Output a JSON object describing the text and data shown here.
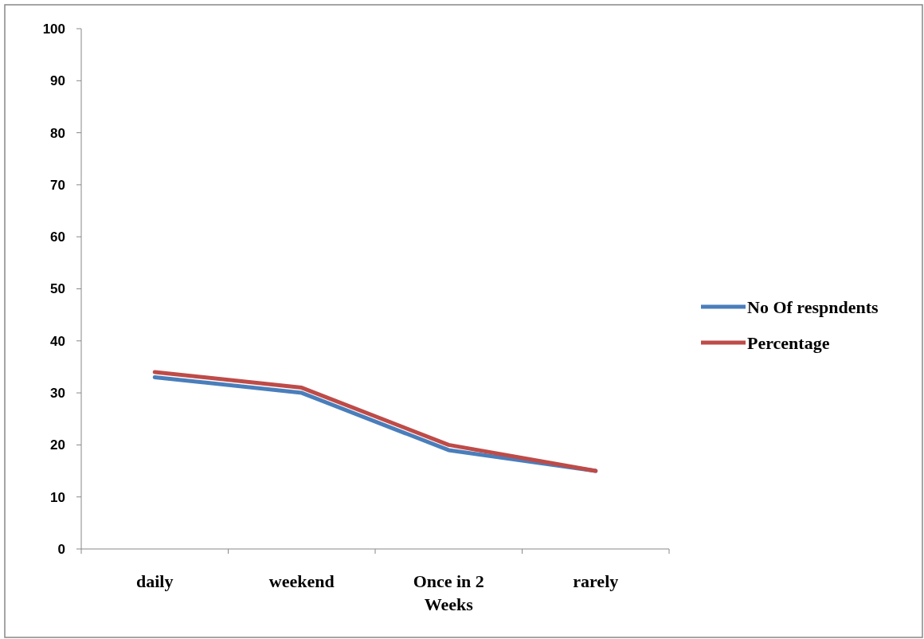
{
  "chart_data": {
    "type": "line",
    "categories": [
      "daily",
      "weekend",
      "Once in 2 Weeks",
      "rarely"
    ],
    "series": [
      {
        "name": "No Of respndents",
        "color": "#4a7ebb",
        "values": [
          33,
          30,
          19,
          15
        ]
      },
      {
        "name": "Percentage",
        "color": "#be4b48",
        "values": [
          34,
          31,
          20,
          15
        ]
      }
    ],
    "ylim": [
      0,
      100
    ],
    "yticks": [
      0,
      10,
      20,
      30,
      40,
      50,
      60,
      70,
      80,
      90,
      100
    ],
    "grid": false,
    "legend": "right",
    "marker": "none",
    "line_style": "solid"
  }
}
